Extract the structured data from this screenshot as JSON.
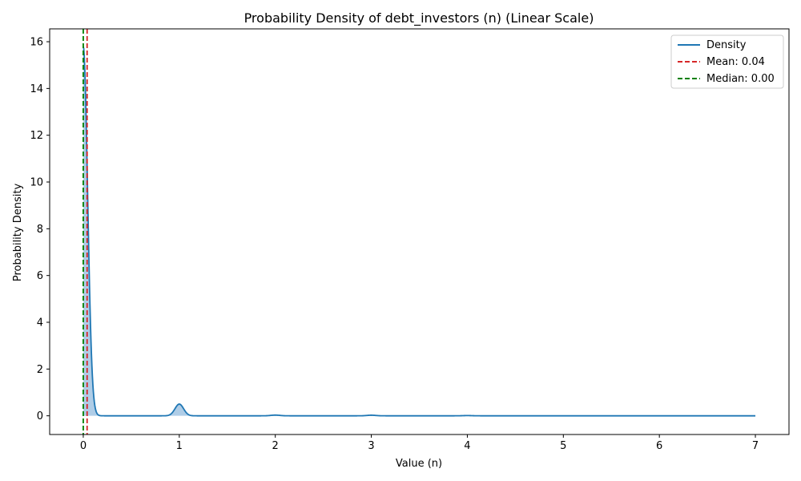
{
  "chart_data": {
    "type": "area",
    "title": "Probability Density of debt_investors (n) (Linear Scale)",
    "xlabel": "Value (n)",
    "ylabel": "Probability Density",
    "xlim": [
      -0.35,
      7.35
    ],
    "ylim": [
      -0.8,
      16.55
    ],
    "x_ticks": [
      0,
      1,
      2,
      3,
      4,
      5,
      6,
      7
    ],
    "y_ticks": [
      0,
      2,
      4,
      6,
      8,
      10,
      12,
      14,
      16
    ],
    "grid": false,
    "legend": "top-right",
    "colors": {
      "density": "#1f77b4",
      "fill": "#a6c8e4",
      "mean": "#d62728",
      "median": "#008000"
    },
    "series": [
      {
        "name": "Density",
        "peaks": [
          {
            "center": 0.0,
            "height": 15.8,
            "width": 0.045
          },
          {
            "center": 1.0,
            "height": 0.5,
            "width": 0.045
          },
          {
            "center": 2.0,
            "height": 0.03,
            "width": 0.045
          },
          {
            "center": 3.0,
            "height": 0.025,
            "width": 0.045
          },
          {
            "center": 4.0,
            "height": 0.01,
            "width": 0.045
          }
        ],
        "x_range": [
          0,
          7
        ]
      }
    ],
    "reference_lines": [
      {
        "name": "Mean: 0.04",
        "x": 0.04,
        "style": "dashed",
        "color": "#d62728"
      },
      {
        "name": "Median: 0.00",
        "x": 0.0,
        "style": "dashed",
        "color": "#008000"
      }
    ]
  },
  "legend_labels": {
    "density": "Density",
    "mean": "Mean: 0.04",
    "median": "Median: 0.00"
  }
}
